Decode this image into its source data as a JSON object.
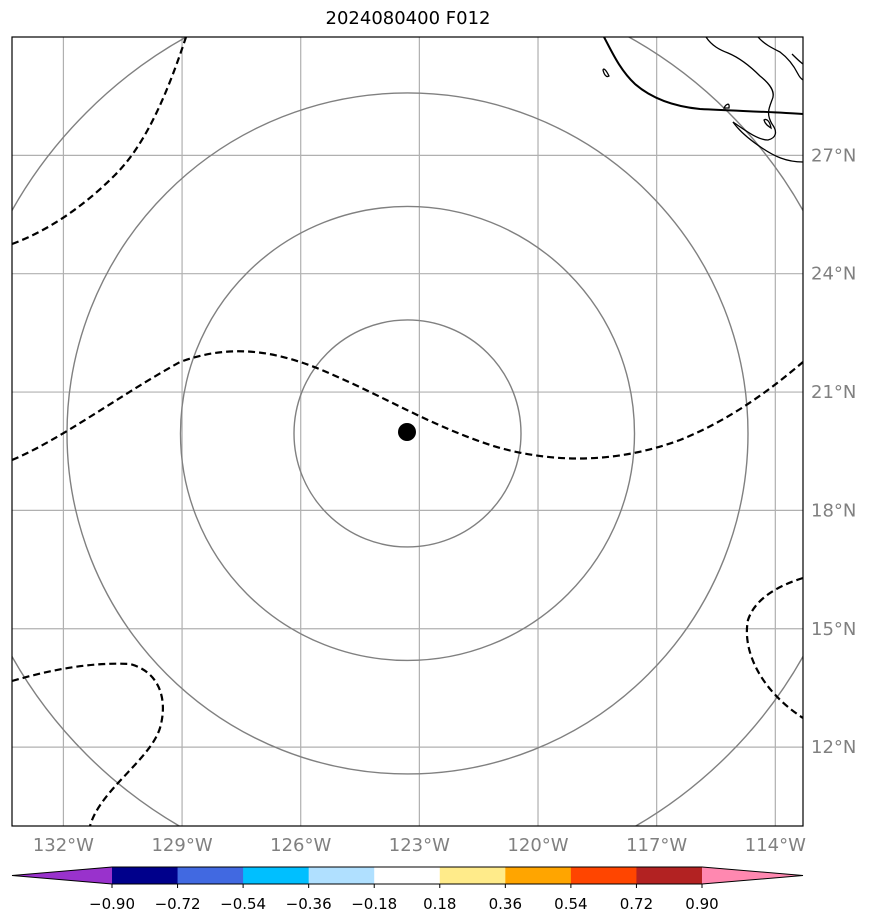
{
  "title": "2024080400 F012",
  "map": {
    "longitude_labels": [
      "132°W",
      "129°W",
      "126°W",
      "123°W",
      "120°W",
      "117°W",
      "114°W"
    ],
    "latitude_labels": [
      "27°N",
      "24°N",
      "21°N",
      "18°N",
      "15°N",
      "12°N"
    ],
    "lon_grid_lines": [
      -132,
      -129,
      -126,
      -123,
      -120,
      -117,
      -114
    ],
    "lat_grid_lines": [
      27,
      24,
      21,
      18,
      15,
      12
    ],
    "extent": {
      "lon_min": -133.3,
      "lon_max": -113.3,
      "lat_min": 10.0,
      "lat_max": 30.0
    },
    "center_marker": {
      "lon": -123.3,
      "lat": 19.95
    },
    "range_rings_count": 4,
    "ring_color": "#808080",
    "contour_style": "dashed black"
  },
  "colorbar": {
    "tick_labels": [
      "−0.90",
      "−0.72",
      "−0.54",
      "−0.36",
      "−0.18",
      "0.18",
      "0.36",
      "0.54",
      "0.72",
      "0.90"
    ],
    "colors": [
      "#9932CC",
      "#00008B",
      "#4169E1",
      "#00BFFF",
      "#B0E0FF",
      "#FFFFFF",
      "#FFEB8A",
      "#FFA500",
      "#FF4500",
      "#B22222",
      "#FF88B0"
    ]
  }
}
